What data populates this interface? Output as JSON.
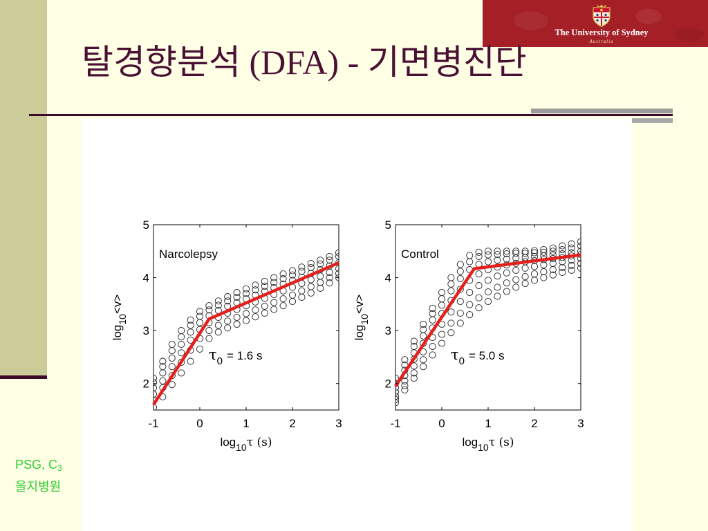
{
  "slide": {
    "title": "탈경향분석 (DFA) - 기면병진단",
    "colors": {
      "background": "#FFFFE5",
      "side_band": "#CCCC99",
      "accent_dark": "#3D0B27",
      "title": "#4A1034",
      "logo_red": "#A51F26",
      "rule_gray": "#9B9B9B"
    }
  },
  "logo": {
    "name": "The University of Sydney",
    "country": "Australia",
    "icon": "university-crest-icon"
  },
  "footnote": {
    "line1": "PSG, C",
    "line1_sub": "3",
    "line2": "을지병원",
    "color": "#2ECC2E"
  },
  "chart_data": [
    {
      "type": "scatter",
      "marker": "open-circle",
      "marker_color": "#222222",
      "grid": false,
      "annotation": "Narcolepsy",
      "crossover_label": {
        "symbol": "τ",
        "sub": "0",
        "text": "= 1.6 s"
      },
      "xlabel": {
        "prefix": "log",
        "sub": "10",
        "suffix": "τ (s)"
      },
      "ylabel": {
        "prefix": "log",
        "sub": "10",
        "suffix": "<v>"
      },
      "xlim": [
        -1,
        3
      ],
      "ylim": [
        1.5,
        5
      ],
      "xticks": [
        -1,
        0,
        1,
        2,
        3
      ],
      "yticks": [
        2,
        3,
        4,
        5
      ],
      "x": [
        -1,
        -0.8,
        -0.6,
        -0.4,
        -0.2,
        0,
        0.2,
        0.4,
        0.6,
        0.8,
        1,
        1.2,
        1.4,
        1.6,
        1.8,
        2,
        2.2,
        2.4,
        2.6,
        2.8,
        3
      ],
      "series": [
        {
          "values": [
            1.55,
            1.75,
            1.98,
            2.2,
            2.42,
            2.65,
            2.85,
            2.97,
            3.05,
            3.12,
            3.19,
            3.26,
            3.33,
            3.4,
            3.47,
            3.55,
            3.63,
            3.71,
            3.8,
            3.9,
            4.0
          ]
        },
        {
          "values": [
            1.68,
            1.92,
            2.15,
            2.4,
            2.63,
            2.85,
            3.0,
            3.1,
            3.18,
            3.25,
            3.32,
            3.39,
            3.46,
            3.53,
            3.6,
            3.67,
            3.75,
            3.83,
            3.91,
            4.0,
            4.08
          ]
        },
        {
          "values": [
            1.8,
            2.05,
            2.32,
            2.58,
            2.82,
            3.02,
            3.15,
            3.25,
            3.33,
            3.4,
            3.47,
            3.54,
            3.61,
            3.68,
            3.75,
            3.82,
            3.89,
            3.96,
            4.03,
            4.1,
            4.17
          ]
        },
        {
          "values": [
            1.92,
            2.2,
            2.48,
            2.74,
            2.97,
            3.15,
            3.28,
            3.38,
            3.46,
            3.53,
            3.6,
            3.67,
            3.74,
            3.81,
            3.88,
            3.95,
            4.01,
            4.08,
            4.15,
            4.22,
            4.28
          ]
        },
        {
          "values": [
            2.02,
            2.32,
            2.62,
            2.88,
            3.1,
            3.27,
            3.39,
            3.48,
            3.56,
            3.63,
            3.7,
            3.77,
            3.84,
            3.91,
            3.98,
            4.05,
            4.12,
            4.19,
            4.26,
            4.33,
            4.4
          ]
        },
        {
          "values": [
            2.1,
            2.42,
            2.74,
            3.0,
            3.2,
            3.36,
            3.47,
            3.56,
            3.64,
            3.72,
            3.79,
            3.86,
            3.93,
            4.0,
            4.07,
            4.13,
            4.2,
            4.27,
            4.33,
            4.4,
            4.47
          ]
        }
      ],
      "fit": {
        "x": [
          -1,
          0.2,
          3
        ],
        "y": [
          1.6,
          3.22,
          4.28
        ],
        "color": "#E3201C"
      }
    },
    {
      "type": "scatter",
      "marker": "open-circle",
      "marker_color": "#222222",
      "grid": false,
      "annotation": "Control",
      "crossover_label": {
        "symbol": "τ",
        "sub": "0",
        "text": "= 5.0 s"
      },
      "xlabel": {
        "prefix": "log",
        "sub": "10",
        "suffix": "τ (s)"
      },
      "ylabel": {
        "prefix": "log",
        "sub": "10",
        "suffix": "<v>"
      },
      "xlim": [
        -1,
        3
      ],
      "ylim": [
        1.5,
        5
      ],
      "xticks": [
        -1,
        0,
        1,
        2,
        3
      ],
      "yticks": [
        2,
        3,
        4,
        5
      ],
      "x": [
        -1,
        -0.8,
        -0.6,
        -0.4,
        -0.2,
        0,
        0.2,
        0.4,
        0.6,
        0.8,
        1,
        1.2,
        1.4,
        1.6,
        1.8,
        2,
        2.2,
        2.4,
        2.6,
        2.8,
        3
      ],
      "series": [
        {
          "values": [
            2.1,
            2.45,
            2.8,
            3.12,
            3.42,
            3.72,
            4.0,
            4.25,
            4.42,
            4.48,
            4.5,
            4.5,
            4.5,
            4.5,
            4.5,
            4.51,
            4.53,
            4.56,
            4.6,
            4.64,
            4.68
          ]
        },
        {
          "values": [
            2.0,
            2.35,
            2.7,
            3.02,
            3.32,
            3.6,
            3.88,
            4.12,
            4.3,
            4.4,
            4.43,
            4.44,
            4.45,
            4.46,
            4.46,
            4.47,
            4.48,
            4.5,
            4.53,
            4.56,
            4.6
          ]
        },
        {
          "values": [
            1.92,
            2.25,
            2.58,
            2.9,
            3.2,
            3.48,
            3.75,
            3.98,
            4.15,
            4.25,
            4.3,
            4.33,
            4.35,
            4.37,
            4.38,
            4.4,
            4.41,
            4.43,
            4.45,
            4.47,
            4.5
          ]
        },
        {
          "values": [
            1.84,
            2.15,
            2.46,
            2.76,
            3.05,
            3.32,
            3.57,
            3.78,
            3.95,
            4.07,
            4.15,
            4.2,
            4.24,
            4.27,
            4.3,
            4.32,
            4.34,
            4.36,
            4.38,
            4.41,
            4.44
          ]
        },
        {
          "values": [
            1.76,
            2.05,
            2.33,
            2.6,
            2.87,
            3.12,
            3.35,
            3.55,
            3.72,
            3.85,
            3.95,
            4.03,
            4.09,
            4.14,
            4.18,
            4.21,
            4.24,
            4.27,
            4.3,
            4.33,
            4.36
          ]
        },
        {
          "values": [
            1.7,
            1.96,
            2.2,
            2.45,
            2.7,
            2.93,
            3.14,
            3.33,
            3.49,
            3.62,
            3.73,
            3.82,
            3.9,
            3.96,
            4.02,
            4.07,
            4.11,
            4.15,
            4.19,
            4.23,
            4.27
          ]
        },
        {
          "values": [
            1.64,
            1.88,
            2.1,
            2.32,
            2.54,
            2.76,
            2.96,
            3.14,
            3.3,
            3.43,
            3.55,
            3.65,
            3.74,
            3.82,
            3.89,
            3.95,
            4.0,
            4.05,
            4.1,
            4.14,
            4.18
          ]
        }
      ],
      "fit": {
        "x": [
          -1,
          0.7,
          3
        ],
        "y": [
          1.95,
          4.17,
          4.43
        ],
        "color": "#E3201C"
      }
    }
  ]
}
